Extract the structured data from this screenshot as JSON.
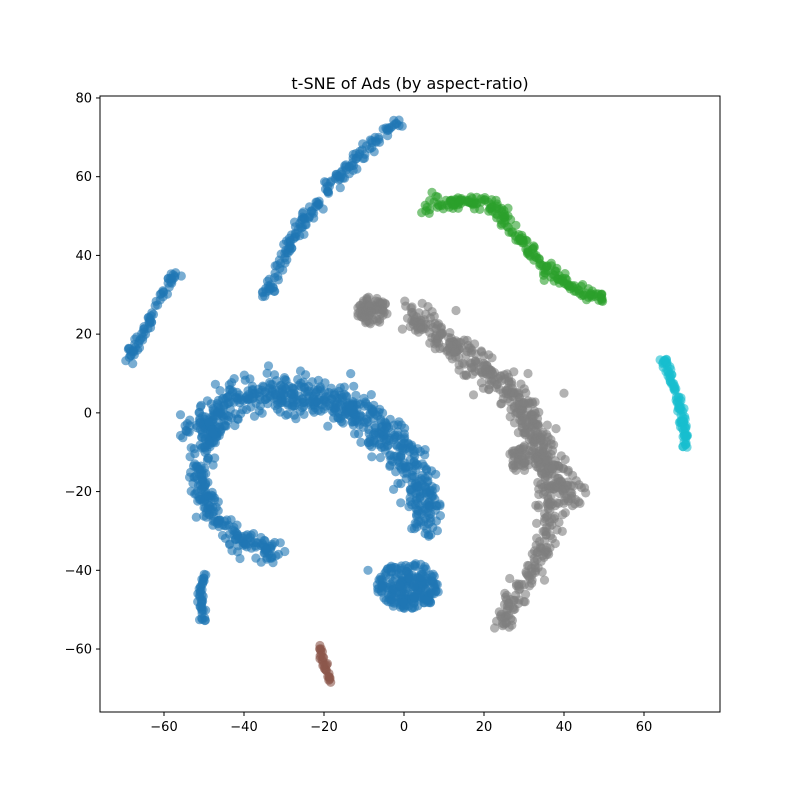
{
  "chart_data": {
    "type": "scatter",
    "title": "t-SNE of Ads (by aspect-ratio)",
    "xlabel": "",
    "ylabel": "",
    "xlim": [
      -76,
      79
    ],
    "ylim": [
      -76,
      80.5
    ],
    "xticks": [
      -60,
      -40,
      -20,
      0,
      20,
      40,
      60
    ],
    "yticks": [
      -60,
      -40,
      -20,
      0,
      20,
      40,
      60,
      80
    ],
    "grid": false,
    "marker_alpha": 0.6,
    "colors": {
      "blue": "#1f77b4",
      "green": "#2ca02c",
      "gray": "#7f7f7f",
      "cyan": "#17becf",
      "brown": "#8c564b"
    },
    "series": [
      {
        "color": "blue",
        "clusters": [
          {
            "shape": "path",
            "path": [
              [
                -36,
                29
              ],
              [
                -32,
                33
              ],
              [
                -29,
                42
              ],
              [
                -24,
                50
              ],
              [
                -18,
                58
              ],
              [
                -12,
                64
              ],
              [
                -6,
                70
              ],
              [
                -1,
                73.5
              ]
            ],
            "spread": 1.4,
            "count": 170
          },
          {
            "shape": "path",
            "path": [
              [
                -69,
                13
              ],
              [
                -66,
                19
              ],
              [
                -63,
                25
              ],
              [
                -60,
                31
              ],
              [
                -57,
                35.5
              ]
            ],
            "spread": 0.9,
            "count": 70
          },
          {
            "shape": "path",
            "path": [
              [
                -51,
                -5
              ],
              [
                -48,
                0
              ],
              [
                -42,
                4
              ],
              [
                -34,
                5
              ],
              [
                -25,
                4
              ],
              [
                -17,
                3
              ],
              [
                -10,
                -1
              ],
              [
                -3,
                -6
              ],
              [
                2,
                -14
              ],
              [
                6,
                -22
              ],
              [
                5,
                -29
              ]
            ],
            "spread": 4.2,
            "count": 650
          },
          {
            "shape": "path",
            "path": [
              [
                -46,
                -2
              ],
              [
                -50,
                -10
              ],
              [
                -51,
                -18
              ],
              [
                -47,
                -27
              ],
              [
                -41,
                -32
              ],
              [
                -36,
                -34
              ],
              [
                -31,
                -37
              ]
            ],
            "spread": 2.5,
            "count": 230
          },
          {
            "shape": "blob",
            "center": [
              1,
              -44
            ],
            "radius": [
              8,
              6
            ],
            "count": 220
          },
          {
            "shape": "path",
            "path": [
              [
                -50,
                -41
              ],
              [
                -51,
                -47
              ],
              [
                -50,
                -53
              ]
            ],
            "spread": 0.6,
            "count": 40
          },
          {
            "shape": "points",
            "points": [
              [
                -41,
                -37
              ],
              [
                -52,
                -16
              ],
              [
                -44,
                4
              ],
              [
                -42,
                4
              ],
              [
                -9,
                -40
              ],
              [
                -2,
                -41
              ],
              [
                -5,
                -47
              ],
              [
                7,
                -46
              ],
              [
                -43,
                -35
              ]
            ]
          }
        ]
      },
      {
        "color": "green",
        "clusters": [
          {
            "shape": "path",
            "path": [
              [
                6,
                52
              ],
              [
                10,
                53
              ],
              [
                16,
                54
              ],
              [
                22,
                53
              ],
              [
                26,
                48
              ],
              [
                30,
                43
              ],
              [
                34,
                38
              ],
              [
                40,
                33
              ],
              [
                46,
                30
              ],
              [
                51,
                29
              ]
            ],
            "spread": 1.5,
            "count": 210
          },
          {
            "shape": "points",
            "points": [
              [
                7,
                56
              ],
              [
                8,
                55
              ],
              [
                23,
                54
              ],
              [
                26,
                52
              ],
              [
                33,
                40
              ],
              [
                38,
                36
              ]
            ]
          }
        ]
      },
      {
        "color": "gray",
        "clusters": [
          {
            "shape": "blob",
            "center": [
              -8,
              26
            ],
            "radius": [
              4,
              3.5
            ],
            "count": 75
          },
          {
            "shape": "path",
            "path": [
              [
                2,
                24
              ],
              [
                8,
                21
              ],
              [
                15,
                15
              ],
              [
                21,
                10
              ],
              [
                27,
                5
              ],
              [
                31,
                0
              ],
              [
                33,
                -6
              ],
              [
                36,
                -12
              ],
              [
                39,
                -18
              ],
              [
                42,
                -22
              ]
            ],
            "spread": 3.5,
            "count": 420
          },
          {
            "shape": "path",
            "path": [
              [
                34,
                -8
              ],
              [
                36,
                -20
              ],
              [
                36,
                -30
              ],
              [
                34,
                -38
              ],
              [
                30,
                -44
              ],
              [
                27,
                -48
              ],
              [
                24,
                -54
              ]
            ],
            "spread": 2.5,
            "count": 180
          },
          {
            "shape": "blob",
            "center": [
              29,
              -12
            ],
            "radius": [
              3,
              3
            ],
            "count": 35
          },
          {
            "shape": "points",
            "points": [
              [
                31,
                10
              ],
              [
                22,
                14
              ],
              [
                13,
                26
              ],
              [
                6,
                27
              ],
              [
                44,
                -23
              ],
              [
                41,
                -15
              ],
              [
                38,
                -4
              ],
              [
                40,
                5
              ]
            ]
          }
        ]
      },
      {
        "color": "cyan",
        "clusters": [
          {
            "shape": "path",
            "path": [
              [
                65,
                14
              ],
              [
                67,
                8
              ],
              [
                69,
                2
              ],
              [
                70,
                -4
              ],
              [
                70.5,
                -9
              ]
            ],
            "spread": 0.7,
            "count": 90
          }
        ]
      },
      {
        "color": "brown",
        "clusters": [
          {
            "shape": "path",
            "path": [
              [
                -21,
                -59
              ],
              [
                -20.5,
                -62
              ],
              [
                -19.5,
                -65
              ],
              [
                -18.5,
                -67
              ],
              [
                -18,
                -69
              ]
            ],
            "spread": 0.6,
            "count": 30
          }
        ]
      }
    ]
  }
}
